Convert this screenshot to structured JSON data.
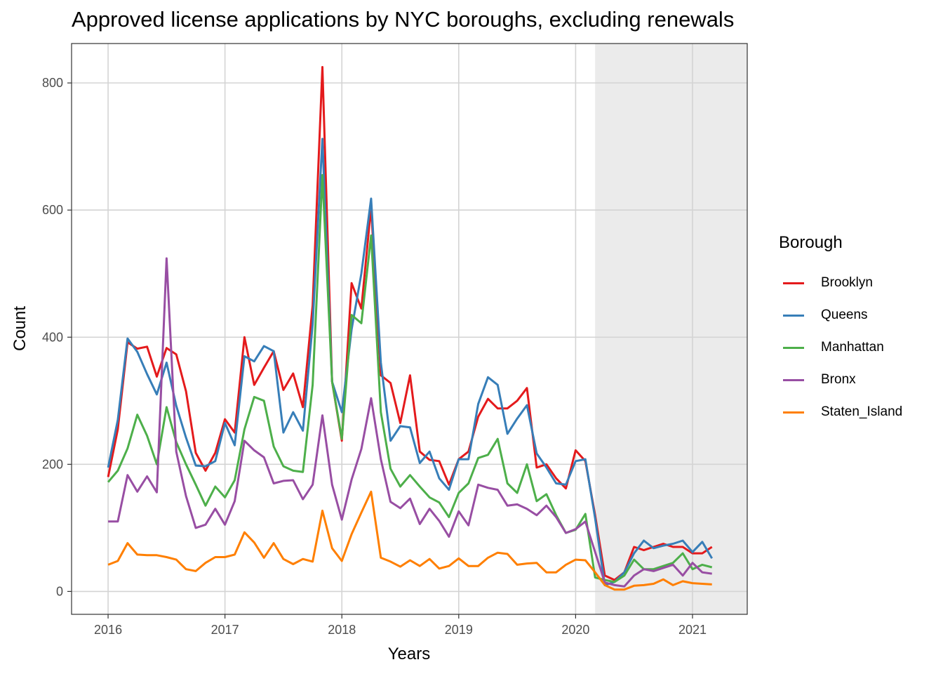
{
  "chart_data": {
    "type": "line",
    "title": "Approved license applications by NYC boroughs, excluding renewals",
    "xlabel": "Years",
    "ylabel": "Count",
    "x_ticks": [
      "2016",
      "2017",
      "2018",
      "2019",
      "2020",
      "2021"
    ],
    "y_ticks": [
      "0",
      "200",
      "400",
      "600",
      "800"
    ],
    "xlim": [
      "2015-10",
      "2021-06"
    ],
    "ylim": [
      -36,
      862
    ],
    "grid": true,
    "shaded_region": {
      "from": "2020-03",
      "to": "2021-06"
    },
    "legend": {
      "title": "Borough",
      "position": "right"
    },
    "x": [
      "2016-01",
      "2016-02",
      "2016-03",
      "2016-04",
      "2016-05",
      "2016-06",
      "2016-07",
      "2016-08",
      "2016-09",
      "2016-10",
      "2016-11",
      "2016-12",
      "2017-01",
      "2017-02",
      "2017-03",
      "2017-04",
      "2017-05",
      "2017-06",
      "2017-07",
      "2017-08",
      "2017-09",
      "2017-10",
      "2017-11",
      "2017-12",
      "2018-01",
      "2018-02",
      "2018-03",
      "2018-04",
      "2018-05",
      "2018-06",
      "2018-07",
      "2018-08",
      "2018-09",
      "2018-10",
      "2018-11",
      "2018-12",
      "2019-01",
      "2019-02",
      "2019-03",
      "2019-04",
      "2019-05",
      "2019-06",
      "2019-07",
      "2019-08",
      "2019-09",
      "2019-10",
      "2019-11",
      "2019-12",
      "2020-01",
      "2020-02",
      "2020-03",
      "2020-04",
      "2020-05",
      "2020-06",
      "2020-07",
      "2020-08",
      "2020-09",
      "2020-10",
      "2020-11",
      "2020-12",
      "2021-01",
      "2021-02",
      "2021-03"
    ],
    "series": [
      {
        "name": "Brooklyn",
        "color": "#e41a1c",
        "values": [
          180,
          255,
          392,
          382,
          385,
          338,
          383,
          373,
          315,
          218,
          190,
          218,
          271,
          250,
          400,
          325,
          352,
          378,
          317,
          343,
          290,
          450,
          825,
          330,
          237,
          485,
          445,
          605,
          340,
          328,
          265,
          340,
          220,
          207,
          205,
          168,
          208,
          220,
          275,
          303,
          288,
          288,
          300,
          320,
          195,
          200,
          178,
          162,
          222,
          205,
          120,
          25,
          18,
          30,
          70,
          65,
          70,
          75,
          70,
          70,
          60,
          60,
          70
        ]
      },
      {
        "name": "Queens",
        "color": "#377eb8",
        "values": [
          195,
          270,
          398,
          377,
          342,
          310,
          360,
          292,
          242,
          198,
          197,
          205,
          265,
          230,
          370,
          362,
          386,
          378,
          250,
          282,
          253,
          420,
          712,
          330,
          282,
          412,
          500,
          618,
          360,
          237,
          260,
          258,
          202,
          220,
          178,
          160,
          208,
          208,
          295,
          337,
          325,
          248,
          272,
          293,
          217,
          195,
          170,
          168,
          205,
          208,
          115,
          10,
          15,
          30,
          60,
          80,
          68,
          72,
          75,
          80,
          62,
          78,
          52
        ]
      },
      {
        "name": "Manhattan",
        "color": "#4daf4a",
        "values": [
          172,
          190,
          225,
          278,
          245,
          200,
          290,
          235,
          200,
          168,
          135,
          165,
          148,
          175,
          255,
          306,
          300,
          228,
          197,
          190,
          188,
          325,
          655,
          330,
          240,
          435,
          422,
          560,
          282,
          193,
          165,
          183,
          165,
          148,
          140,
          117,
          155,
          170,
          210,
          215,
          240,
          170,
          155,
          200,
          142,
          153,
          120,
          92,
          97,
          122,
          22,
          18,
          15,
          25,
          50,
          35,
          35,
          40,
          45,
          60,
          35,
          42,
          38
        ]
      },
      {
        "name": "Bronx",
        "color": "#984ea3",
        "values": [
          110,
          110,
          183,
          157,
          181,
          156,
          524,
          220,
          150,
          100,
          105,
          130,
          105,
          142,
          237,
          222,
          211,
          170,
          174,
          175,
          145,
          168,
          277,
          168,
          113,
          176,
          224,
          304,
          208,
          141,
          131,
          146,
          106,
          130,
          111,
          86,
          126,
          104,
          168,
          163,
          160,
          135,
          137,
          130,
          120,
          135,
          117,
          92,
          98,
          110,
          62,
          14,
          10,
          8,
          25,
          35,
          32,
          37,
          42,
          25,
          45,
          30,
          28
        ]
      },
      {
        "name": "Staten_Island",
        "color": "#ff7f00",
        "values": [
          42,
          48,
          76,
          58,
          57,
          57,
          54,
          50,
          35,
          32,
          45,
          54,
          54,
          58,
          93,
          77,
          53,
          76,
          51,
          43,
          51,
          47,
          127,
          68,
          48,
          90,
          124,
          157,
          53,
          47,
          39,
          49,
          40,
          51,
          36,
          40,
          52,
          40,
          40,
          53,
          61,
          59,
          42,
          44,
          45,
          30,
          30,
          42,
          50,
          49,
          30,
          10,
          3,
          3,
          9,
          10,
          12,
          19,
          10,
          16,
          13,
          12,
          11
        ]
      }
    ]
  }
}
